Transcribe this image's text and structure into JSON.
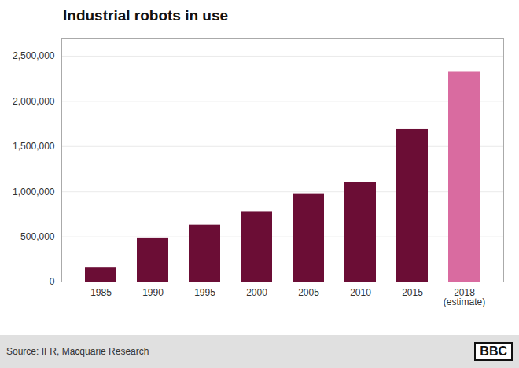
{
  "chart_data": {
    "type": "bar",
    "title": "Industrial robots in use",
    "categories": [
      "1985",
      "1990",
      "1995",
      "2000",
      "2005",
      "2010",
      "2015",
      "2018\n(estimate)"
    ],
    "values": [
      155000,
      480000,
      630000,
      780000,
      970000,
      1100000,
      1690000,
      2330000
    ],
    "colors": [
      "#6b0d35",
      "#6b0d35",
      "#6b0d35",
      "#6b0d35",
      "#6b0d35",
      "#6b0d35",
      "#6b0d35",
      "#d96ba0"
    ],
    "ylim": [
      0,
      2700000
    ],
    "yticks": [
      0,
      {
        "value": 500000,
        "label": "500,000"
      },
      {
        "value": 1000000,
        "label": "1,000,000"
      },
      {
        "value": 1500000,
        "label": "1,500,000"
      },
      {
        "value": 2000000,
        "label": "2,000,000"
      },
      {
        "value": 2500000,
        "label": "2,500,000"
      }
    ],
    "grid": true,
    "annotations": [
      "Source: IFR, Macquarie Research",
      "BBC"
    ]
  }
}
